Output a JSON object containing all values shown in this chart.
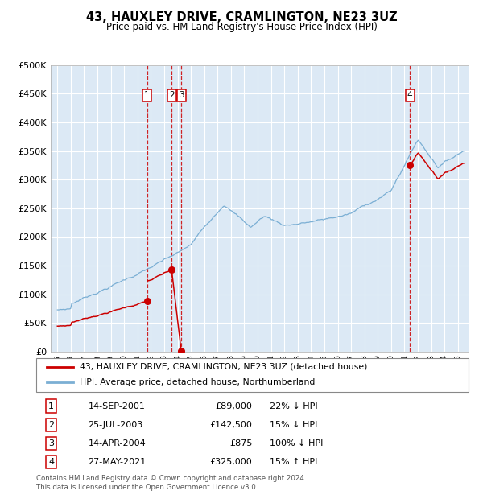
{
  "title": "43, HAUXLEY DRIVE, CRAMLINGTON, NE23 3UZ",
  "subtitle": "Price paid vs. HM Land Registry's House Price Index (HPI)",
  "background_color": "#ffffff",
  "plot_bg_color": "#dce9f5",
  "grid_color": "#ffffff",
  "hpi_color": "#7bafd4",
  "price_color": "#cc0000",
  "ylim": [
    0,
    500000
  ],
  "yticks": [
    0,
    50000,
    100000,
    150000,
    200000,
    250000,
    300000,
    350000,
    400000,
    450000,
    500000
  ],
  "xlim_start": 1994.5,
  "xlim_end": 2025.8,
  "transactions": [
    {
      "label": "1",
      "date_str": "14-SEP-2001",
      "year": 2001.71,
      "price": 89000
    },
    {
      "label": "2",
      "date_str": "25-JUL-2003",
      "year": 2003.56,
      "price": 142500
    },
    {
      "label": "3",
      "date_str": "14-APR-2004",
      "year": 2004.28,
      "price": 875
    },
    {
      "label": "4",
      "date_str": "27-MAY-2021",
      "year": 2021.41,
      "price": 325000
    }
  ],
  "legend_line1": "43, HAUXLEY DRIVE, CRAMLINGTON, NE23 3UZ (detached house)",
  "legend_line2": "HPI: Average price, detached house, Northumberland",
  "footer": "Contains HM Land Registry data © Crown copyright and database right 2024.\nThis data is licensed under the Open Government Licence v3.0.",
  "table_rows": [
    [
      "1",
      "14-SEP-2001",
      "£89,000",
      "22% ↓ HPI"
    ],
    [
      "2",
      "25-JUL-2003",
      "£142,500",
      "15% ↓ HPI"
    ],
    [
      "3",
      "14-APR-2004",
      "£875",
      "100% ↓ HPI"
    ],
    [
      "4",
      "27-MAY-2021",
      "£325,000",
      "15% ↑ HPI"
    ]
  ]
}
